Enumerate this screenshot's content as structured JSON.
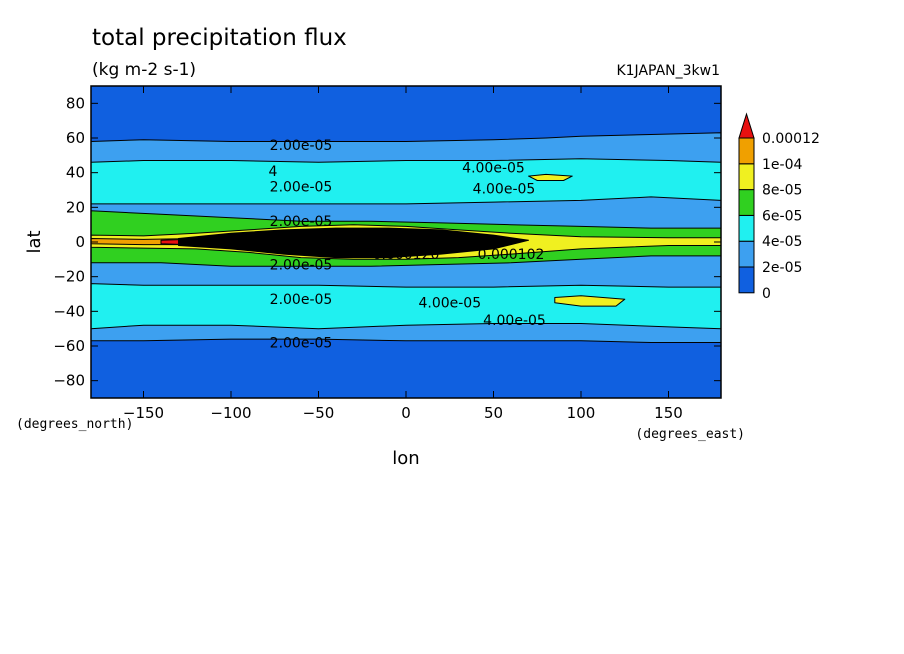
{
  "chart_data": {
    "type": "heatmap",
    "title": "total precipitation flux",
    "units": "(kg m-2 s-1)",
    "run_name": "K1JAPAN_3kw1",
    "xlabel": "lon",
    "ylabel": "lat",
    "x_unit_label": "(degrees_east)",
    "y_unit_label": "(degrees_north)",
    "xlim": [
      -180,
      180
    ],
    "ylim": [
      -90,
      90
    ],
    "x_ticks": [
      -150,
      -100,
      -50,
      0,
      50,
      100,
      150
    ],
    "y_ticks": [
      80,
      60,
      40,
      20,
      0,
      -20,
      -40,
      -60,
      -80
    ],
    "x_tick_labels": [
      "−150",
      "−100",
      "−50",
      "0",
      "50",
      "100",
      "150"
    ],
    "y_tick_labels": [
      "80",
      "60",
      "40",
      "20",
      "0",
      "−20",
      "−40",
      "−60",
      "−80"
    ],
    "colorbar": {
      "levels": [
        "0",
        "2e-05",
        "4e-05",
        "6e-05",
        "8e-05",
        "1e-04",
        "0.00012"
      ],
      "colors": [
        "#1060e0",
        "#3da0f0",
        "#20f0f0",
        "#30d020",
        "#f0f020",
        "#f0a000",
        "#e81010"
      ],
      "extend": "max"
    },
    "regions": [
      {
        "level": 1,
        "points": [
          [
            -180,
            58
          ],
          [
            -150,
            59
          ],
          [
            -100,
            58
          ],
          [
            -50,
            58
          ],
          [
            0,
            58
          ],
          [
            50,
            59
          ],
          [
            80,
            60
          ],
          [
            100,
            61
          ],
          [
            140,
            62
          ],
          [
            180,
            63
          ],
          [
            180,
            -58
          ],
          [
            140,
            -58
          ],
          [
            100,
            -57
          ],
          [
            50,
            -57
          ],
          [
            0,
            -57
          ],
          [
            -50,
            -56
          ],
          [
            -100,
            -56
          ],
          [
            -150,
            -57
          ],
          [
            -180,
            -57
          ]
        ]
      },
      {
        "level": 2,
        "points": [
          [
            -180,
            46
          ],
          [
            -150,
            47
          ],
          [
            -100,
            47
          ],
          [
            -50,
            46
          ],
          [
            0,
            47
          ],
          [
            50,
            47
          ],
          [
            100,
            48
          ],
          [
            150,
            47
          ],
          [
            180,
            46
          ],
          [
            180,
            24
          ],
          [
            140,
            26
          ],
          [
            100,
            24
          ],
          [
            50,
            23
          ],
          [
            0,
            22
          ],
          [
            -50,
            22
          ],
          [
            -100,
            22
          ],
          [
            -150,
            22
          ],
          [
            -180,
            22
          ]
        ]
      },
      {
        "level": 2,
        "points": [
          [
            -180,
            -24
          ],
          [
            -150,
            -25
          ],
          [
            -100,
            -25
          ],
          [
            -50,
            -25
          ],
          [
            0,
            -26
          ],
          [
            50,
            -26
          ],
          [
            100,
            -25
          ],
          [
            150,
            -26
          ],
          [
            180,
            -26
          ],
          [
            180,
            -50
          ],
          [
            150,
            -49
          ],
          [
            100,
            -47
          ],
          [
            50,
            -47
          ],
          [
            0,
            -48
          ],
          [
            -50,
            -50
          ],
          [
            -100,
            -48
          ],
          [
            -150,
            -48
          ],
          [
            -180,
            -50
          ]
        ]
      },
      {
        "level": 3,
        "points": [
          [
            -180,
            18
          ],
          [
            -140,
            16
          ],
          [
            -100,
            14
          ],
          [
            -60,
            12
          ],
          [
            -20,
            12
          ],
          [
            20,
            11
          ],
          [
            60,
            10
          ],
          [
            100,
            9
          ],
          [
            140,
            8
          ],
          [
            180,
            8
          ],
          [
            180,
            -8
          ],
          [
            140,
            -8
          ],
          [
            100,
            -10
          ],
          [
            60,
            -12
          ],
          [
            20,
            -13
          ],
          [
            -20,
            -14
          ],
          [
            -60,
            -14
          ],
          [
            -100,
            -14
          ],
          [
            -140,
            -12
          ],
          [
            -180,
            -12
          ]
        ]
      },
      {
        "level": 4,
        "points": [
          [
            -180,
            4
          ],
          [
            -150,
            3.5
          ],
          [
            -120,
            5
          ],
          [
            -90,
            7
          ],
          [
            -60,
            9
          ],
          [
            -30,
            10
          ],
          [
            0,
            9
          ],
          [
            30,
            7
          ],
          [
            60,
            5
          ],
          [
            100,
            3
          ],
          [
            150,
            2.5
          ],
          [
            180,
            2.5
          ],
          [
            180,
            -2
          ],
          [
            150,
            -2
          ],
          [
            100,
            -4
          ],
          [
            60,
            -7
          ],
          [
            30,
            -9
          ],
          [
            0,
            -10
          ],
          [
            -30,
            -10
          ],
          [
            -60,
            -9
          ],
          [
            -90,
            -6
          ],
          [
            -120,
            -4
          ],
          [
            -150,
            -3.5
          ],
          [
            -180,
            -3
          ]
        ]
      },
      {
        "level": 5,
        "points": [
          [
            -180,
            2
          ],
          [
            -150,
            1.5
          ],
          [
            -120,
            2
          ],
          [
            -100,
            2.5
          ],
          [
            -100,
            -2
          ],
          [
            -120,
            -1.5
          ],
          [
            -150,
            -1.5
          ],
          [
            -180,
            -1
          ]
        ]
      },
      {
        "level": 6,
        "points": [
          [
            -140,
            1
          ],
          [
            -125,
            1.5
          ],
          [
            -115,
            1
          ],
          [
            -115,
            -1
          ],
          [
            -125,
            -1.5
          ],
          [
            -140,
            -1
          ]
        ]
      },
      {
        "level": 7,
        "points": [
          [
            -130,
            2
          ],
          [
            -100,
            5
          ],
          [
            -70,
            7
          ],
          [
            -40,
            8
          ],
          [
            -10,
            8
          ],
          [
            20,
            7
          ],
          [
            50,
            4
          ],
          [
            70,
            1
          ],
          [
            50,
            -4
          ],
          [
            20,
            -7
          ],
          [
            -10,
            -9
          ],
          [
            -40,
            -9
          ],
          [
            -70,
            -7
          ],
          [
            -100,
            -4
          ],
          [
            -130,
            -2
          ]
        ]
      },
      {
        "level": 4,
        "points": [
          [
            70,
            38
          ],
          [
            80,
            39
          ],
          [
            95,
            38
          ],
          [
            90,
            35.5
          ],
          [
            75,
            35.5
          ]
        ]
      },
      {
        "level": 4,
        "points": [
          [
            85,
            -32
          ],
          [
            100,
            -31
          ],
          [
            125,
            -33
          ],
          [
            120,
            -37
          ],
          [
            100,
            -37
          ],
          [
            85,
            -35
          ]
        ]
      }
    ],
    "contour_labels": [
      {
        "text": "2.00e-05",
        "x": -60,
        "y": 56
      },
      {
        "text": "4.00e-05",
        "x": 50,
        "y": 43
      },
      {
        "text": "4",
        "x": -76,
        "y": 41
      },
      {
        "text": "4.00e-05",
        "x": 56,
        "y": 31
      },
      {
        "text": "2.00e-05",
        "x": -60,
        "y": 32
      },
      {
        "text": "2.00e-05",
        "x": -60,
        "y": 12
      },
      {
        "text": "2.00e-05",
        "x": -60,
        "y": -13
      },
      {
        "text": "0.000120",
        "x": 0,
        "y": -7
      },
      {
        "text": "0.000102",
        "x": 60,
        "y": -7
      },
      {
        "text": "2.00e-05",
        "x": -60,
        "y": -33
      },
      {
        "text": "4.00e-05",
        "x": 25,
        "y": -35
      },
      {
        "text": "4.00e-05",
        "x": 62,
        "y": -45
      },
      {
        "text": "2.00e-05",
        "x": -60,
        "y": -58
      }
    ]
  }
}
